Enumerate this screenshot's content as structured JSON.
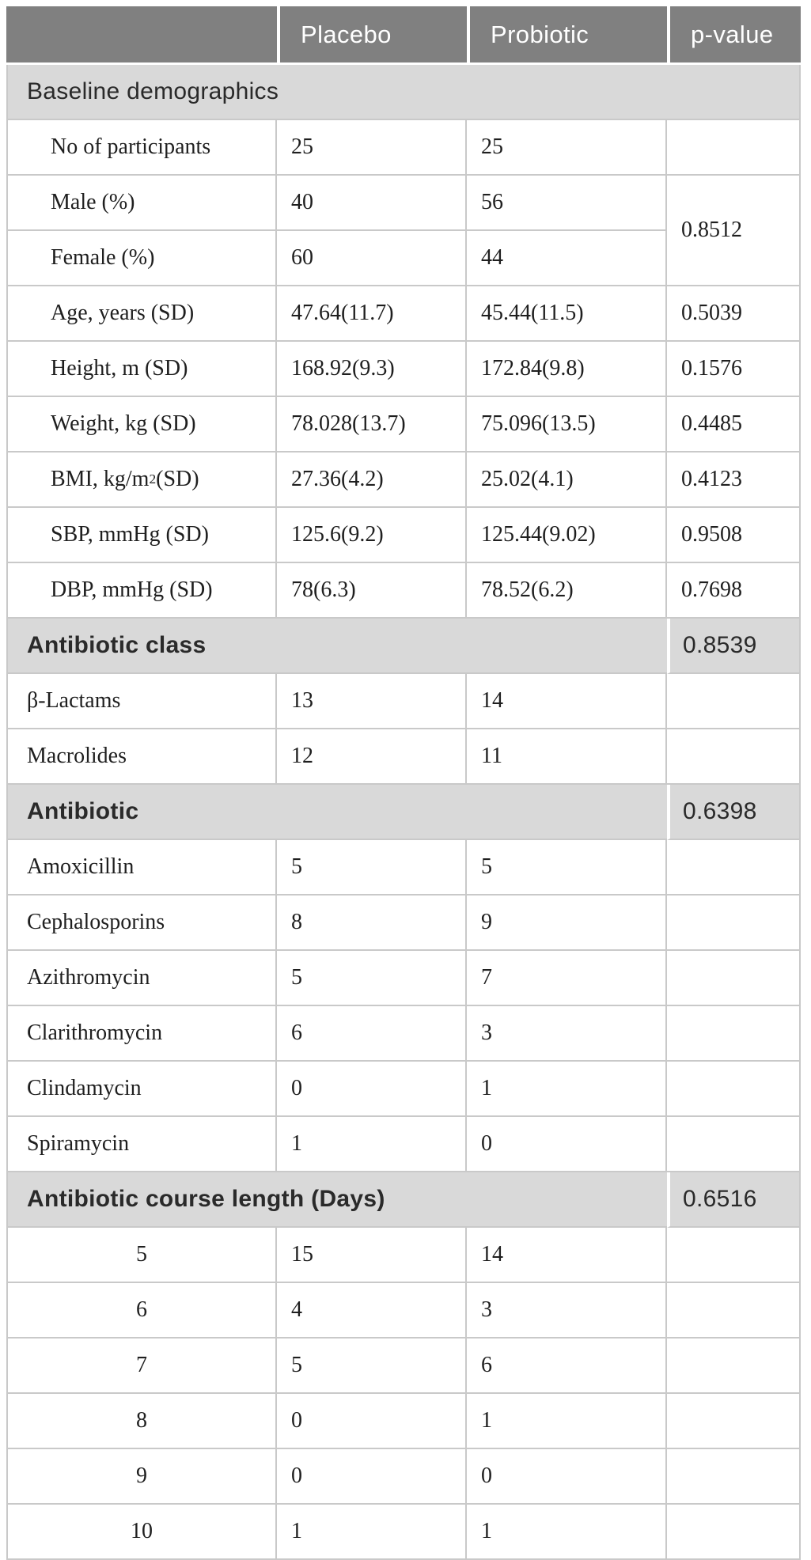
{
  "table": {
    "header": {
      "blank": "",
      "placebo": "Placebo",
      "probiotic": "Probiotic",
      "pvalue": "p-value"
    },
    "colors": {
      "header_bg": "#808080",
      "header_text": "#ffffff",
      "section_bg": "#d9d9d9",
      "grid_line": "#c9c9c9",
      "body_text": "#1f1f1f",
      "section_text": "#2a2a2a",
      "separator": "#ffffff"
    },
    "rows": [
      {
        "type": "section",
        "id": "baseline-demographics",
        "label": "Baseline demographics",
        "bold": false,
        "full_span": true
      },
      {
        "type": "data",
        "indent": true,
        "label": "No of participants",
        "placebo": "25",
        "probiotic": "25",
        "pvalue": ""
      },
      {
        "type": "data",
        "indent": true,
        "label": "Male (%)",
        "placebo": "40",
        "probiotic": "56",
        "pvalue": "0.8512",
        "pvalue_rowspan": 2
      },
      {
        "type": "data",
        "indent": true,
        "label": "Female (%)",
        "placebo": "60",
        "probiotic": "44",
        "pvalue_skip": true
      },
      {
        "type": "data",
        "indent": true,
        "label": "Age, years (SD)",
        "placebo": "47.64(11.7)",
        "probiotic": "45.44(11.5)",
        "pvalue": "0.5039"
      },
      {
        "type": "data",
        "indent": true,
        "label": "Height, m (SD)",
        "placebo": "168.92(9.3)",
        "probiotic": "172.84(9.8)",
        "pvalue": "0.1576"
      },
      {
        "type": "data",
        "indent": true,
        "label": "Weight, kg (SD)",
        "placebo": "78.028(13.7)",
        "probiotic": "75.096(13.5)",
        "pvalue": "0.4485"
      },
      {
        "type": "data",
        "indent": true,
        "label": "BMI, kg/m^2 (SD)",
        "placebo": "27.36(4.2)",
        "probiotic": "25.02(4.1)",
        "pvalue": "0.4123"
      },
      {
        "type": "data",
        "indent": true,
        "label": "SBP, mmHg (SD)",
        "placebo": "125.6(9.2)",
        "probiotic": "125.44(9.02)",
        "pvalue": "0.9508"
      },
      {
        "type": "data",
        "indent": true,
        "label": "DBP, mmHg (SD)",
        "placebo": "78(6.3)",
        "probiotic": "78.52(6.2)",
        "pvalue": "0.7698"
      },
      {
        "type": "section",
        "id": "antibiotic-class",
        "label": "Antibiotic class",
        "bold": true,
        "pvalue": "0.8539"
      },
      {
        "type": "data",
        "label": "β-Lactams",
        "placebo": "13",
        "probiotic": "14",
        "pvalue": ""
      },
      {
        "type": "data",
        "label": "Macrolides",
        "placebo": "12",
        "probiotic": "11",
        "pvalue": ""
      },
      {
        "type": "section",
        "id": "antibiotic",
        "label": "Antibiotic",
        "bold": true,
        "pvalue": "0.6398"
      },
      {
        "type": "data",
        "label": "Amoxicillin",
        "placebo": "5",
        "probiotic": "5",
        "pvalue": ""
      },
      {
        "type": "data",
        "label": "Cephalosporins",
        "placebo": "8",
        "probiotic": "9",
        "pvalue": ""
      },
      {
        "type": "data",
        "label": "Azithromycin",
        "placebo": "5",
        "probiotic": "7",
        "pvalue": ""
      },
      {
        "type": "data",
        "label": "Clarithromycin",
        "placebo": "6",
        "probiotic": "3",
        "pvalue": ""
      },
      {
        "type": "data",
        "label": "Clindamycin",
        "placebo": "0",
        "probiotic": "1",
        "pvalue": ""
      },
      {
        "type": "data",
        "label": "Spiramycin",
        "placebo": "1",
        "probiotic": "0",
        "pvalue": ""
      },
      {
        "type": "section",
        "id": "antibiotic-course-length",
        "label": "Antibiotic course length (Days)",
        "bold": true,
        "pvalue": "0.6516"
      },
      {
        "type": "data",
        "center": true,
        "label": "5",
        "placebo": "15",
        "probiotic": "14",
        "pvalue": ""
      },
      {
        "type": "data",
        "center": true,
        "label": "6",
        "placebo": "4",
        "probiotic": "3",
        "pvalue": ""
      },
      {
        "type": "data",
        "center": true,
        "label": "7",
        "placebo": "5",
        "probiotic": "6",
        "pvalue": ""
      },
      {
        "type": "data",
        "center": true,
        "label": "8",
        "placebo": "0",
        "probiotic": "1",
        "pvalue": ""
      },
      {
        "type": "data",
        "center": true,
        "label": "9",
        "placebo": "0",
        "probiotic": "0",
        "pvalue": ""
      },
      {
        "type": "data",
        "center": true,
        "label": "10",
        "placebo": "1",
        "probiotic": "1",
        "pvalue": ""
      }
    ]
  }
}
